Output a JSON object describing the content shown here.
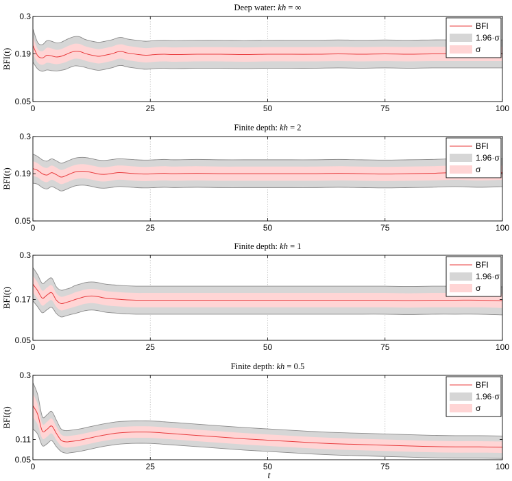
{
  "chart_data": [
    {
      "type": "area",
      "title": "Deep water: kh = ∞",
      "title_prefix": "Deep water: ",
      "title_var": "kh",
      "title_eq": " = ",
      "title_val": "∞",
      "xlabel": "",
      "ylabel": "BFI(t)",
      "xlim": [
        0,
        100
      ],
      "ylim": [
        0.05,
        0.3
      ],
      "xticks": [
        0,
        25,
        50,
        75,
        100
      ],
      "xtick_labels": [
        "0",
        "25",
        "50",
        "75",
        "100"
      ],
      "yticks": [
        0.05,
        0.19,
        0.3
      ],
      "ytick_labels": [
        "0.05",
        "0.19",
        "0.3"
      ],
      "legend": [
        "BFI",
        "1.96·σ",
        "σ"
      ],
      "legend_position": "top-right",
      "series": [
        {
          "name": "BFI",
          "x": [
            0,
            1,
            2,
            3,
            4,
            5,
            6,
            7,
            8,
            9,
            10,
            11,
            12,
            13,
            14,
            15,
            16,
            17,
            18,
            19,
            20,
            22,
            24,
            26,
            28,
            30,
            35,
            40,
            45,
            50,
            55,
            60,
            65,
            70,
            75,
            80,
            85,
            90,
            95,
            100
          ],
          "values": [
            0.215,
            0.185,
            0.178,
            0.186,
            0.184,
            0.181,
            0.183,
            0.188,
            0.194,
            0.198,
            0.197,
            0.192,
            0.188,
            0.185,
            0.183,
            0.185,
            0.188,
            0.191,
            0.196,
            0.197,
            0.193,
            0.189,
            0.186,
            0.188,
            0.189,
            0.188,
            0.189,
            0.189,
            0.188,
            0.189,
            0.189,
            0.189,
            0.19,
            0.189,
            0.19,
            0.189,
            0.19,
            0.19,
            0.19,
            0.19
          ],
          "sigma": [
            0.025,
            0.02,
            0.02,
            0.022,
            0.022,
            0.021,
            0.021,
            0.022,
            0.022,
            0.022,
            0.022,
            0.021,
            0.021,
            0.021,
            0.021,
            0.021,
            0.021,
            0.021,
            0.021,
            0.021,
            0.021,
            0.021,
            0.021,
            0.021,
            0.021,
            0.021,
            0.021,
            0.021,
            0.021,
            0.021,
            0.021,
            0.021,
            0.021,
            0.021,
            0.021,
            0.021,
            0.021,
            0.021,
            0.021,
            0.021
          ]
        }
      ]
    },
    {
      "type": "area",
      "title": "Finite depth: kh = 2",
      "title_prefix": "Finite depth: ",
      "title_var": "kh",
      "title_eq": " = ",
      "title_val": "2",
      "xlabel": "",
      "ylabel": "BFI(t)",
      "xlim": [
        0,
        100
      ],
      "ylim": [
        0.05,
        0.3
      ],
      "xticks": [
        0,
        25,
        50,
        75,
        100
      ],
      "xtick_labels": [
        "0",
        "25",
        "50",
        "75",
        "100"
      ],
      "yticks": [
        0.05,
        0.19,
        0.3
      ],
      "ytick_labels": [
        "0.05",
        "0.19",
        "0.3"
      ],
      "legend": [
        "BFI",
        "1.96·σ",
        "σ"
      ],
      "legend_position": "top-right",
      "series": [
        {
          "name": "BFI",
          "x": [
            0,
            1,
            2,
            3,
            4,
            5,
            6,
            7,
            8,
            9,
            10,
            11,
            12,
            13,
            14,
            15,
            16,
            17,
            18,
            19,
            20,
            22,
            24,
            26,
            28,
            30,
            35,
            40,
            45,
            50,
            55,
            60,
            65,
            70,
            75,
            80,
            85,
            90,
            95,
            100
          ],
          "values": [
            0.205,
            0.2,
            0.19,
            0.186,
            0.193,
            0.187,
            0.18,
            0.184,
            0.19,
            0.195,
            0.197,
            0.197,
            0.195,
            0.192,
            0.189,
            0.188,
            0.189,
            0.191,
            0.193,
            0.193,
            0.192,
            0.19,
            0.189,
            0.19,
            0.191,
            0.19,
            0.191,
            0.19,
            0.19,
            0.19,
            0.19,
            0.19,
            0.191,
            0.19,
            0.189,
            0.19,
            0.191,
            0.193,
            0.191,
            0.193
          ],
          "sigma": [
            0.022,
            0.021,
            0.021,
            0.021,
            0.021,
            0.021,
            0.021,
            0.021,
            0.021,
            0.021,
            0.021,
            0.021,
            0.021,
            0.021,
            0.021,
            0.021,
            0.021,
            0.021,
            0.021,
            0.021,
            0.021,
            0.021,
            0.021,
            0.021,
            0.021,
            0.021,
            0.021,
            0.021,
            0.021,
            0.021,
            0.021,
            0.021,
            0.021,
            0.021,
            0.021,
            0.021,
            0.021,
            0.021,
            0.021,
            0.021
          ]
        }
      ]
    },
    {
      "type": "area",
      "title": "Finite depth: kh = 1",
      "title_prefix": "Finite depth: ",
      "title_var": "kh",
      "title_eq": " = ",
      "title_val": "1",
      "xlabel": "",
      "ylabel": "BFI(t)",
      "xlim": [
        0,
        100
      ],
      "ylim": [
        0.05,
        0.3
      ],
      "xticks": [
        0,
        25,
        50,
        75,
        100
      ],
      "xtick_labels": [
        "0",
        "25",
        "50",
        "75",
        "100"
      ],
      "yticks": [
        0.05,
        0.17,
        0.3
      ],
      "ytick_labels": [
        "0.05",
        "0.17",
        "0.3"
      ],
      "legend": [
        "BFI",
        "1.96·σ",
        "σ"
      ],
      "legend_position": "top-right",
      "series": [
        {
          "name": "BFI",
          "x": [
            0,
            1,
            2,
            3,
            4,
            5,
            6,
            7,
            8,
            9,
            10,
            11,
            12,
            13,
            14,
            15,
            16,
            18,
            20,
            22,
            24,
            26,
            28,
            30,
            35,
            40,
            45,
            50,
            55,
            60,
            65,
            70,
            75,
            80,
            85,
            90,
            95,
            100
          ],
          "values": [
            0.215,
            0.196,
            0.174,
            0.183,
            0.19,
            0.168,
            0.158,
            0.161,
            0.165,
            0.17,
            0.174,
            0.178,
            0.18,
            0.18,
            0.178,
            0.175,
            0.173,
            0.171,
            0.169,
            0.168,
            0.168,
            0.168,
            0.168,
            0.168,
            0.168,
            0.168,
            0.168,
            0.168,
            0.168,
            0.168,
            0.168,
            0.168,
            0.168,
            0.167,
            0.168,
            0.168,
            0.168,
            0.166
          ],
          "sigma": [
            0.025,
            0.024,
            0.022,
            0.022,
            0.022,
            0.02,
            0.02,
            0.02,
            0.02,
            0.021,
            0.021,
            0.021,
            0.021,
            0.021,
            0.021,
            0.021,
            0.021,
            0.021,
            0.021,
            0.021,
            0.021,
            0.021,
            0.021,
            0.021,
            0.021,
            0.021,
            0.021,
            0.021,
            0.021,
            0.021,
            0.021,
            0.021,
            0.021,
            0.021,
            0.021,
            0.021,
            0.021,
            0.021
          ]
        }
      ]
    },
    {
      "type": "area",
      "title": "Finite depth: kh = 0.5",
      "title_prefix": "Finite depth: ",
      "title_var": "kh",
      "title_eq": " = ",
      "title_val": "0.5",
      "xlabel": "t",
      "ylabel": "BFI(t)",
      "xlim": [
        0,
        100
      ],
      "ylim": [
        0.05,
        0.3
      ],
      "xticks": [
        0,
        25,
        50,
        75,
        100
      ],
      "xtick_labels": [
        "0",
        "25",
        "50",
        "75",
        "100"
      ],
      "yticks": [
        0.05,
        0.11,
        0.3
      ],
      "ytick_labels": [
        "0.05",
        "0.11",
        "0.3"
      ],
      "legend": [
        "BFI",
        "1.96·σ",
        "σ"
      ],
      "legend_position": "top-right",
      "series": [
        {
          "name": "BFI",
          "x": [
            0,
            1,
            2,
            3,
            4,
            5,
            6,
            7,
            8,
            10,
            12,
            14,
            16,
            18,
            20,
            22,
            24,
            26,
            28,
            30,
            35,
            40,
            45,
            50,
            55,
            60,
            65,
            70,
            75,
            80,
            85,
            90,
            95,
            100
          ],
          "values": [
            0.21,
            0.185,
            0.135,
            0.14,
            0.15,
            0.128,
            0.108,
            0.103,
            0.104,
            0.108,
            0.114,
            0.12,
            0.125,
            0.129,
            0.131,
            0.132,
            0.132,
            0.131,
            0.129,
            0.127,
            0.122,
            0.117,
            0.112,
            0.108,
            0.104,
            0.1,
            0.097,
            0.095,
            0.093,
            0.091,
            0.089,
            0.088,
            0.088,
            0.087
          ],
          "sigma": [
            0.035,
            0.03,
            0.022,
            0.022,
            0.022,
            0.02,
            0.017,
            0.017,
            0.017,
            0.017,
            0.017,
            0.017,
            0.017,
            0.017,
            0.017,
            0.017,
            0.017,
            0.017,
            0.017,
            0.017,
            0.017,
            0.017,
            0.017,
            0.017,
            0.017,
            0.017,
            0.017,
            0.017,
            0.017,
            0.017,
            0.017,
            0.017,
            0.017,
            0.017
          ]
        }
      ]
    }
  ],
  "colors": {
    "line": "#e8383a",
    "band_sigma": "#ffd5d5",
    "band_196": "#d6d6d6",
    "band_edge": "#8a8a8a",
    "grid": "#c0c0c0",
    "axis": "#000000"
  }
}
